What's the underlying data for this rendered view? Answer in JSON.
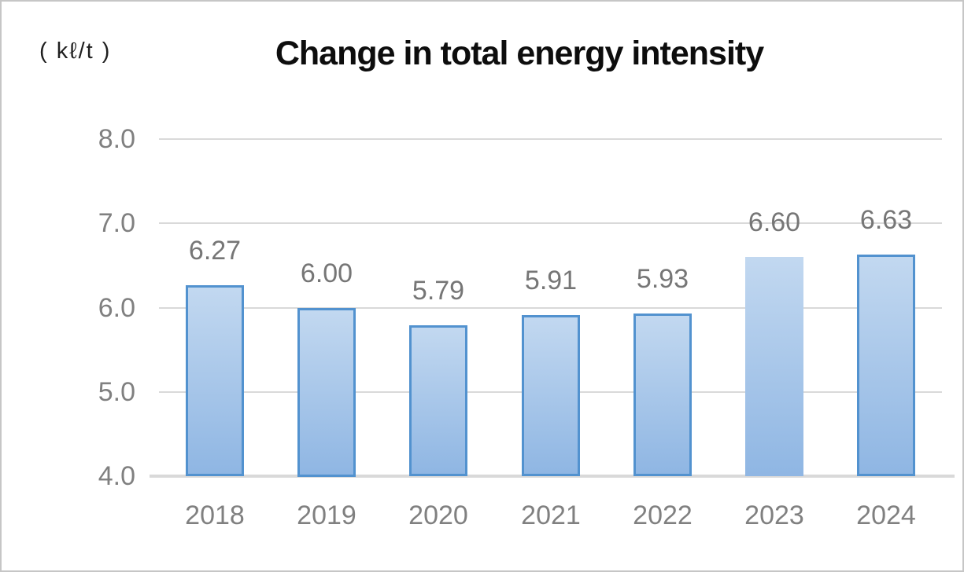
{
  "chart_data": {
    "type": "bar",
    "title": "Change in total energy intensity",
    "unit_label": "( kℓ/t )",
    "categories": [
      "2018",
      "2019",
      "2020",
      "2021",
      "2022",
      "2023",
      "2024"
    ],
    "values": [
      6.27,
      6.0,
      5.79,
      5.91,
      5.93,
      6.6,
      6.63
    ],
    "data_labels": [
      "6.27",
      "6.00",
      "5.79",
      "5.91",
      "5.93",
      "6.60",
      "6.63"
    ],
    "ylim": [
      4.0,
      8.0
    ],
    "yticks": [
      "8.0",
      "7.0",
      "6.0",
      "5.0",
      "4.0"
    ],
    "grid": true,
    "legend": "none",
    "bars_without_border": [
      "2023"
    ],
    "colors": {
      "bar_fill_top": "#c2d8f0",
      "bar_fill_bottom": "#8fb6e3",
      "bar_border": "#5292cf",
      "gridline": "#d9d9d9",
      "axis_line": "#d9d9d9",
      "axis_tick_label": "#808080",
      "data_label": "#767676",
      "title": "#0d0d0d",
      "unit_label": "#1f1f1f"
    }
  }
}
